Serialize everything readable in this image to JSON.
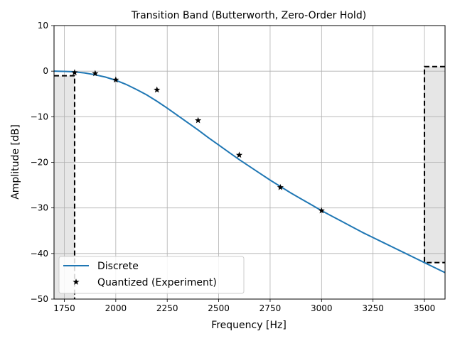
{
  "chart_data": {
    "type": "line",
    "title": "Transition Band (Butterworth, Zero-Order Hold)",
    "xlabel": "Frequency [Hz]",
    "ylabel": "Amplitude [dB]",
    "xlim": [
      1700,
      3600
    ],
    "ylim": [
      -50,
      10
    ],
    "xticks": [
      1750,
      2000,
      2250,
      2500,
      2750,
      3000,
      3250,
      3500
    ],
    "yticks": [
      10,
      0,
      -10,
      -20,
      -30,
      -40,
      -50
    ],
    "grid": true,
    "legend": "lower-left",
    "colors": {
      "discrete": "#1f77b4",
      "quantized": "#000000",
      "band": "#e6e6e6",
      "spec": "#000000"
    },
    "series": [
      {
        "name": "Discrete",
        "style": "line",
        "x": [
          1700,
          1750,
          1800,
          1850,
          1900,
          1950,
          2000,
          2050,
          2100,
          2150,
          2200,
          2250,
          2300,
          2350,
          2400,
          2450,
          2500,
          2550,
          2600,
          2650,
          2700,
          2750,
          2800,
          2850,
          2900,
          2950,
          3000,
          3050,
          3100,
          3150,
          3200,
          3250,
          3300,
          3350,
          3400,
          3450,
          3500,
          3550,
          3600
        ],
        "y": [
          0.0,
          -0.05,
          -0.15,
          -0.4,
          -0.8,
          -1.3,
          -2.0,
          -2.9,
          -4.0,
          -5.2,
          -6.6,
          -8.1,
          -9.7,
          -11.3,
          -12.9,
          -14.6,
          -16.2,
          -17.8,
          -19.4,
          -20.9,
          -22.4,
          -23.9,
          -25.3,
          -26.7,
          -28.0,
          -29.3,
          -30.6,
          -31.8,
          -33.0,
          -34.2,
          -35.4,
          -36.5,
          -37.6,
          -38.7,
          -39.8,
          -40.9,
          -42.0,
          -43.1,
          -44.2
        ]
      },
      {
        "name": "Quantized (Experiment)",
        "style": "markers",
        "marker": "star",
        "x": [
          1800,
          1900,
          2000,
          2200,
          2400,
          2600,
          2800,
          3000
        ],
        "y": [
          -0.3,
          -0.5,
          -1.9,
          -4.1,
          -10.8,
          -18.4,
          -25.5,
          -30.6
        ]
      }
    ],
    "spec": {
      "passband_edge": 1800,
      "passband_ripple": -1,
      "stopband_edge": 3500,
      "stopband_atten": -42,
      "stopband_upper": 1
    }
  }
}
